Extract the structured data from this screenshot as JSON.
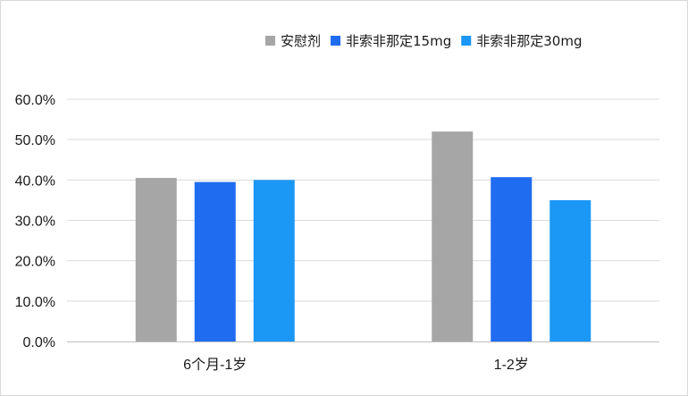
{
  "chart_data": {
    "type": "bar",
    "title": "",
    "xlabel": "",
    "ylabel": "",
    "categories": [
      "6个月-1岁",
      "1-2岁"
    ],
    "series": [
      {
        "name": "安慰剂",
        "color": "#a6a6a6",
        "values": [
          40.5,
          52.0
        ]
      },
      {
        "name": "非索非那定15mg",
        "color": "#1f6cf0",
        "values": [
          39.5,
          40.7
        ]
      },
      {
        "name": "非索非那定30mg",
        "color": "#1b97f5",
        "values": [
          40.0,
          35.0
        ]
      }
    ],
    "ylim": [
      0,
      60
    ],
    "yticks": [
      "0.0%",
      "10.0%",
      "20.0%",
      "30.0%",
      "40.0%",
      "50.0%",
      "60.0%"
    ],
    "grid": true,
    "legend_position": "top-right"
  }
}
